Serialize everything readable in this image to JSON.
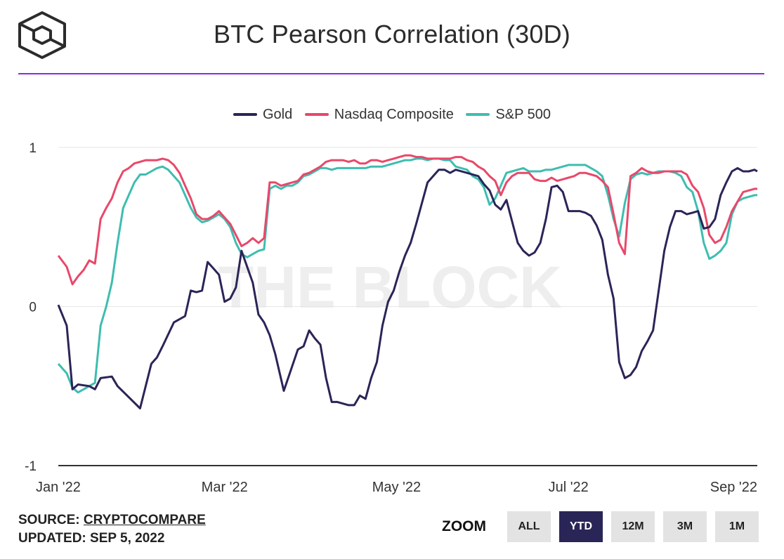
{
  "header": {
    "title": "BTC Pearson Correlation (30D)"
  },
  "footer": {
    "source_label": "SOURCE:",
    "source_value": "CRYPTOCOMPARE",
    "updated_label": "UPDATED:",
    "updated_value": "SEP 5, 2022"
  },
  "zoom": {
    "label": "ZOOM",
    "buttons": [
      "ALL",
      "YTD",
      "12M",
      "3M",
      "1M"
    ],
    "active": "YTD"
  },
  "watermark": "THE BLOCK",
  "colors": {
    "gold": "#2a2557",
    "nasdaq": "#e8486a",
    "sp500": "#3ebdb0",
    "accent": "#8a2be2"
  },
  "chart_data": {
    "type": "line",
    "title": "BTC Pearson Correlation (30D)",
    "ylim": [
      -1,
      1
    ],
    "yticks": [
      -1,
      0,
      1
    ],
    "ytick_labels": [
      "-1",
      "0",
      "1"
    ],
    "x_range": [
      0,
      248
    ],
    "x_unit": "days since Jan 1 2022",
    "xtick_positions": [
      0,
      59,
      120,
      181,
      243
    ],
    "xtick_labels": [
      "Jan '22",
      "Mar '22",
      "May '22",
      "Jul '22",
      "Sep '22"
    ],
    "legend_position": "top-center",
    "series": [
      {
        "name": "Gold",
        "color": "#2a2557",
        "x": [
          0,
          3,
          5,
          7,
          11,
          13,
          15,
          19,
          21,
          25,
          29,
          33,
          35,
          37,
          41,
          45,
          47,
          49,
          51,
          53,
          55,
          57,
          59,
          61,
          63,
          65,
          67,
          69,
          71,
          73,
          75,
          77,
          80,
          85,
          87,
          89,
          91,
          93,
          95,
          97,
          99,
          101,
          103,
          105,
          107,
          109,
          111,
          113,
          115,
          117,
          119,
          121,
          123,
          125,
          127,
          131,
          133,
          135,
          137,
          139,
          141,
          145,
          149,
          151,
          153,
          155,
          157,
          159,
          163,
          165,
          167,
          169,
          171,
          173,
          175,
          177,
          179,
          181,
          183,
          185,
          187,
          189,
          191,
          193,
          195,
          197,
          199,
          201,
          203,
          205,
          207,
          209,
          211,
          213,
          215,
          217,
          219,
          221,
          223,
          225,
          227,
          229,
          231,
          233,
          235,
          237,
          239,
          241,
          243,
          245,
          247,
          248
        ],
        "y": [
          0.01,
          -0.12,
          -0.52,
          -0.49,
          -0.5,
          -0.52,
          -0.45,
          -0.44,
          -0.5,
          -0.57,
          -0.64,
          -0.36,
          -0.32,
          -0.25,
          -0.1,
          -0.06,
          0.1,
          0.09,
          0.1,
          0.28,
          0.24,
          0.2,
          0.03,
          0.05,
          0.12,
          0.35,
          0.25,
          0.15,
          -0.05,
          -0.1,
          -0.18,
          -0.3,
          -0.53,
          -0.27,
          -0.25,
          -0.15,
          -0.2,
          -0.24,
          -0.45,
          -0.6,
          -0.6,
          -0.61,
          -0.62,
          -0.62,
          -0.56,
          -0.58,
          -0.45,
          -0.35,
          -0.12,
          0.03,
          0.1,
          0.22,
          0.32,
          0.4,
          0.52,
          0.78,
          0.82,
          0.86,
          0.86,
          0.84,
          0.86,
          0.84,
          0.82,
          0.77,
          0.73,
          0.64,
          0.61,
          0.67,
          0.4,
          0.35,
          0.32,
          0.34,
          0.4,
          0.55,
          0.75,
          0.76,
          0.72,
          0.6,
          0.6,
          0.6,
          0.59,
          0.57,
          0.51,
          0.42,
          0.2,
          0.05,
          -0.35,
          -0.45,
          -0.43,
          -0.38,
          -0.28,
          -0.22,
          -0.15,
          0.1,
          0.35,
          0.5,
          0.6,
          0.6,
          0.58,
          0.59,
          0.6,
          0.49,
          0.5,
          0.55,
          0.7,
          0.78,
          0.85,
          0.87,
          0.85,
          0.85,
          0.86,
          0.85
        ],
        "note": "placeholder-start"
      },
      {
        "name": "Nasdaq Composite",
        "color": "#e8486a",
        "x": [
          0,
          3,
          5,
          7,
          9,
          11,
          13,
          15,
          17,
          19,
          21,
          23,
          25,
          27,
          29,
          31,
          33,
          35,
          37,
          39,
          41,
          43,
          45,
          47,
          49,
          51,
          53,
          55,
          57,
          59,
          61,
          63,
          65,
          67,
          69,
          71,
          73,
          75,
          77,
          79,
          81,
          83,
          85,
          87,
          89,
          91,
          93,
          95,
          97,
          99,
          101,
          103,
          105,
          107,
          109,
          111,
          113,
          115,
          117,
          119,
          121,
          123,
          125,
          127,
          129,
          131,
          133,
          135,
          137,
          139,
          141,
          143,
          145,
          147,
          149,
          151,
          153,
          155,
          157,
          159,
          161,
          163,
          165,
          167,
          169,
          171,
          173,
          175,
          177,
          179,
          181,
          183,
          185,
          187,
          189,
          191,
          193,
          195,
          197,
          199,
          201,
          203,
          205,
          207,
          209,
          211,
          213,
          215,
          217,
          219,
          221,
          223,
          225,
          227,
          229,
          231,
          233,
          235,
          237,
          239,
          241,
          243,
          245,
          247,
          248
        ],
        "y": [
          0.32,
          0.25,
          0.14,
          0.19,
          0.23,
          0.29,
          0.27,
          0.55,
          0.62,
          0.68,
          0.78,
          0.85,
          0.87,
          0.9,
          0.91,
          0.92,
          0.92,
          0.92,
          0.93,
          0.92,
          0.89,
          0.84,
          0.76,
          0.68,
          0.58,
          0.55,
          0.55,
          0.57,
          0.6,
          0.56,
          0.52,
          0.45,
          0.38,
          0.4,
          0.43,
          0.4,
          0.43,
          0.78,
          0.78,
          0.76,
          0.77,
          0.78,
          0.79,
          0.83,
          0.84,
          0.86,
          0.88,
          0.91,
          0.92,
          0.92,
          0.92,
          0.91,
          0.92,
          0.9,
          0.9,
          0.92,
          0.92,
          0.91,
          0.92,
          0.93,
          0.94,
          0.95,
          0.95,
          0.94,
          0.94,
          0.93,
          0.93,
          0.93,
          0.93,
          0.93,
          0.94,
          0.94,
          0.92,
          0.91,
          0.88,
          0.86,
          0.82,
          0.79,
          0.7,
          0.78,
          0.82,
          0.84,
          0.84,
          0.84,
          0.8,
          0.79,
          0.79,
          0.81,
          0.79,
          0.8,
          0.81,
          0.82,
          0.84,
          0.84,
          0.83,
          0.82,
          0.79,
          0.75,
          0.58,
          0.4,
          0.33,
          0.82,
          0.84,
          0.87,
          0.85,
          0.84,
          0.84,
          0.85,
          0.85,
          0.85,
          0.85,
          0.83,
          0.76,
          0.72,
          0.62,
          0.45,
          0.4,
          0.42,
          0.5,
          0.6,
          0.66,
          0.72,
          0.73,
          0.74,
          0.74
        ],
        "note": "placeholder-start"
      },
      {
        "name": "S&P 500",
        "color": "#3ebdb0",
        "x": [
          0,
          3,
          5,
          7,
          9,
          11,
          13,
          15,
          17,
          19,
          21,
          23,
          25,
          27,
          29,
          31,
          33,
          35,
          37,
          39,
          41,
          43,
          45,
          47,
          49,
          51,
          53,
          55,
          57,
          59,
          61,
          63,
          65,
          67,
          69,
          71,
          73,
          75,
          77,
          79,
          81,
          83,
          85,
          87,
          89,
          91,
          93,
          95,
          97,
          99,
          101,
          103,
          105,
          107,
          109,
          111,
          113,
          115,
          117,
          119,
          121,
          123,
          125,
          127,
          129,
          131,
          133,
          135,
          137,
          139,
          141,
          143,
          145,
          147,
          149,
          151,
          153,
          155,
          157,
          159,
          161,
          163,
          165,
          167,
          169,
          171,
          173,
          175,
          177,
          179,
          181,
          183,
          185,
          187,
          189,
          191,
          193,
          195,
          197,
          199,
          201,
          203,
          205,
          207,
          209,
          211,
          213,
          215,
          217,
          219,
          221,
          223,
          225,
          227,
          229,
          231,
          233,
          235,
          237,
          239,
          241,
          243,
          245,
          247,
          248
        ],
        "y": [
          -0.36,
          -0.42,
          -0.51,
          -0.54,
          -0.52,
          -0.5,
          -0.48,
          -0.12,
          0.0,
          0.15,
          0.4,
          0.62,
          0.7,
          0.78,
          0.83,
          0.83,
          0.85,
          0.87,
          0.88,
          0.86,
          0.82,
          0.78,
          0.7,
          0.62,
          0.56,
          0.53,
          0.54,
          0.56,
          0.58,
          0.55,
          0.5,
          0.4,
          0.33,
          0.31,
          0.33,
          0.35,
          0.36,
          0.74,
          0.76,
          0.74,
          0.76,
          0.76,
          0.78,
          0.82,
          0.83,
          0.85,
          0.87,
          0.87,
          0.86,
          0.87,
          0.87,
          0.87,
          0.87,
          0.87,
          0.87,
          0.88,
          0.88,
          0.88,
          0.89,
          0.9,
          0.91,
          0.92,
          0.92,
          0.93,
          0.93,
          0.92,
          0.93,
          0.93,
          0.92,
          0.92,
          0.88,
          0.87,
          0.86,
          0.82,
          0.8,
          0.75,
          0.64,
          0.68,
          0.76,
          0.84,
          0.85,
          0.86,
          0.87,
          0.85,
          0.85,
          0.85,
          0.86,
          0.86,
          0.87,
          0.88,
          0.89,
          0.89,
          0.89,
          0.89,
          0.87,
          0.85,
          0.82,
          0.7,
          0.55,
          0.44,
          0.65,
          0.8,
          0.83,
          0.84,
          0.83,
          0.84,
          0.85,
          0.85,
          0.85,
          0.84,
          0.82,
          0.75,
          0.72,
          0.6,
          0.4,
          0.3,
          0.32,
          0.35,
          0.4,
          0.58,
          0.66,
          0.68,
          0.69,
          0.7,
          0.7
        ],
        "note": "placeholder-start"
      }
    ]
  }
}
